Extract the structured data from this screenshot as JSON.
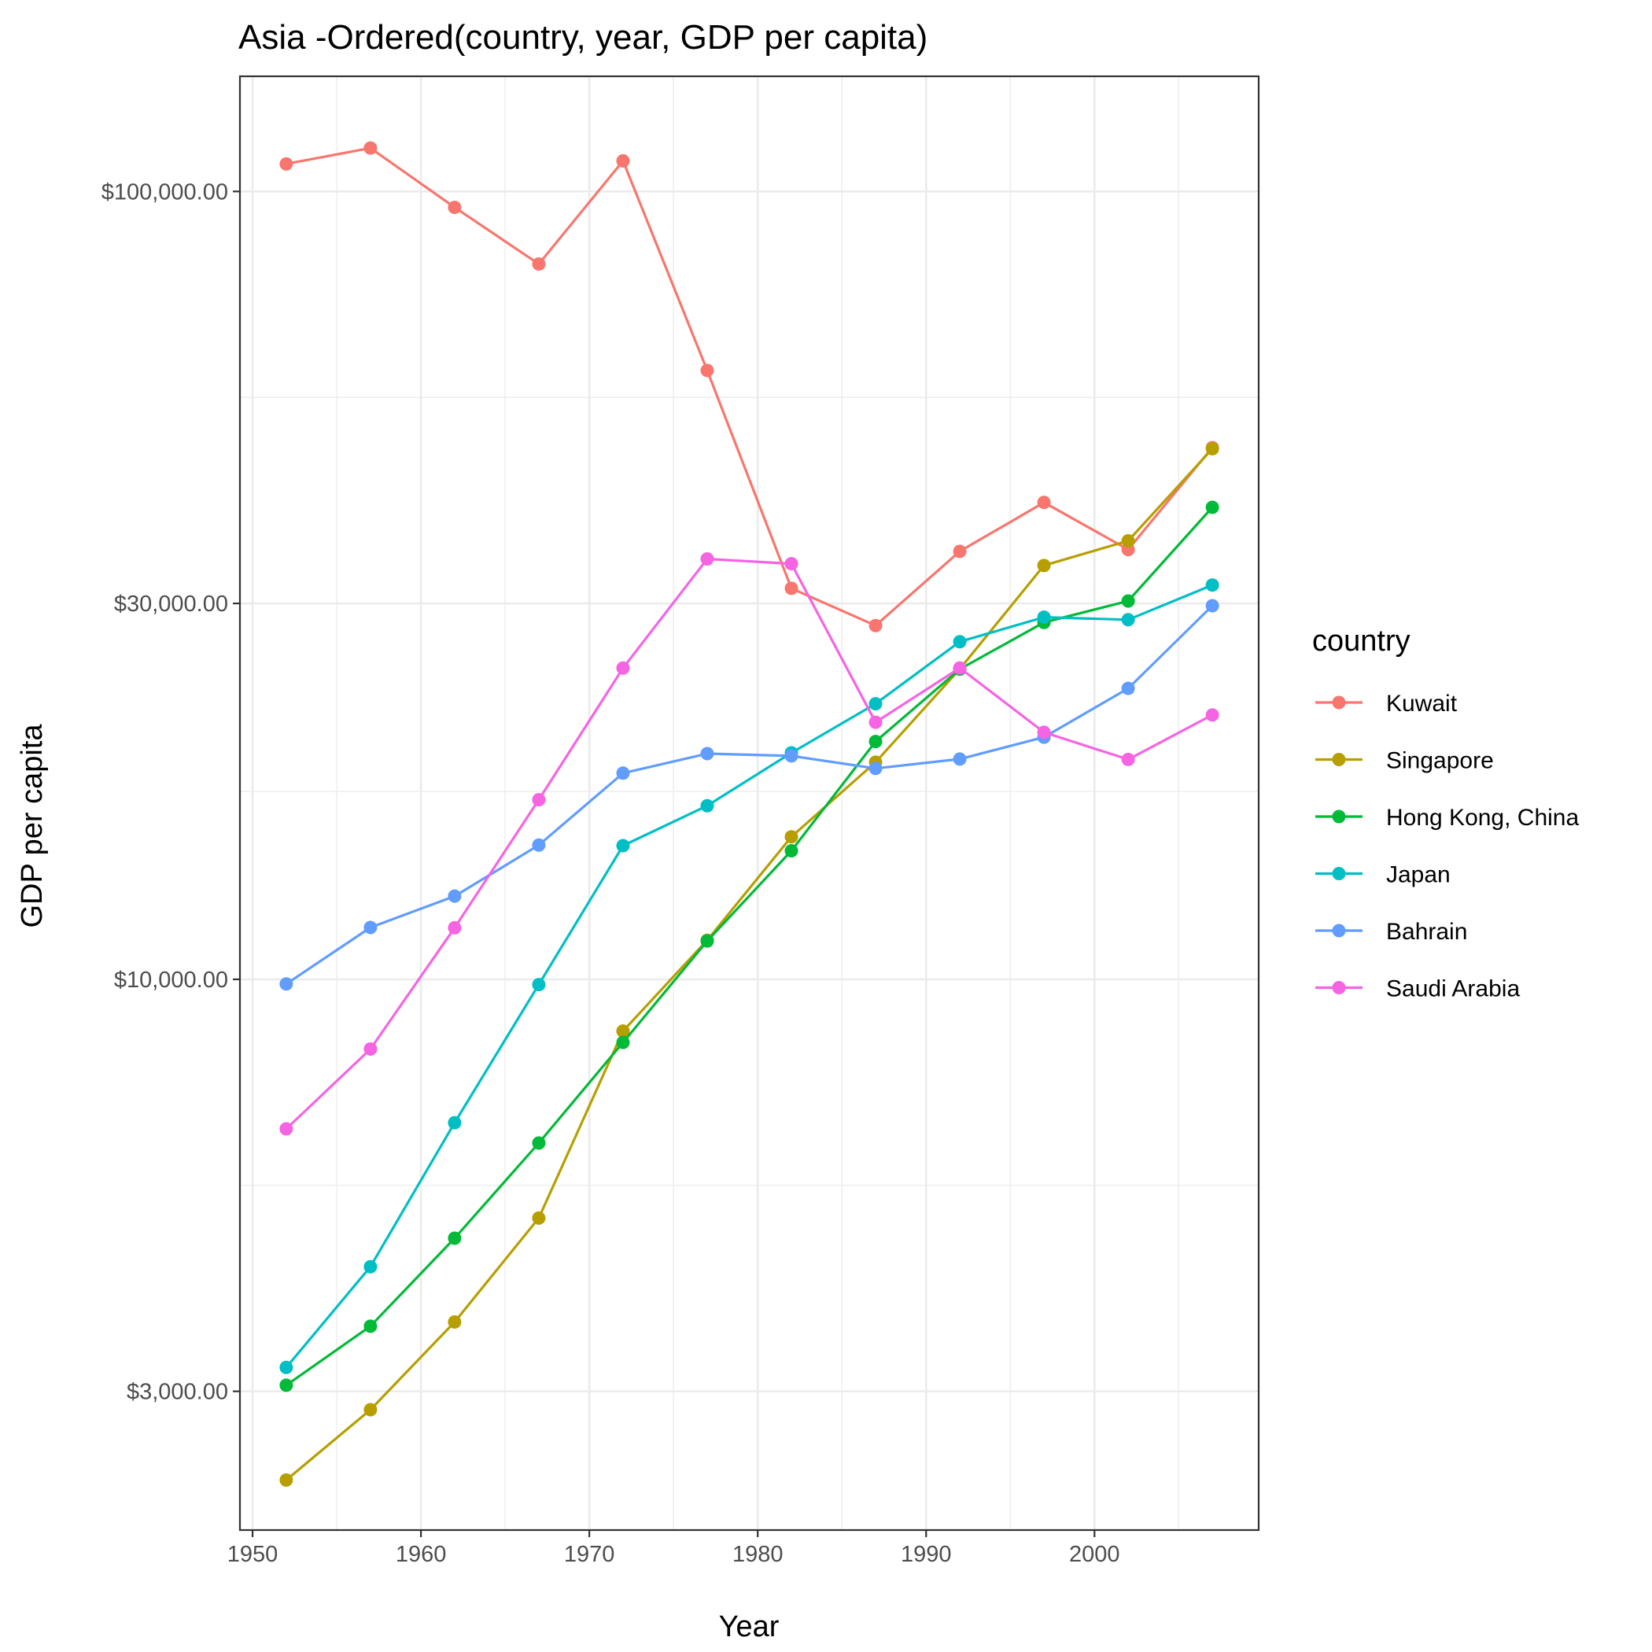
{
  "chart_data": {
    "type": "line",
    "title": "Asia -Ordered(country, year, GDP per capita)",
    "xlabel": "Year",
    "ylabel": "GDP per capita",
    "y_scale": "log10",
    "xlim": [
      1949.25,
      2009.75
    ],
    "ylim": [
      2000,
      140000
    ],
    "x_ticks": [
      1950,
      1960,
      1970,
      1980,
      1990,
      2000
    ],
    "x_tick_labels": [
      "1950",
      "1960",
      "1970",
      "1980",
      "1990",
      "2000"
    ],
    "y_ticks": [
      3000,
      10000,
      30000,
      100000
    ],
    "y_tick_labels": [
      "$3,000.00",
      "$10,000.00",
      "$30,000.00",
      "$100,000.00"
    ],
    "grid": true,
    "legend_title": "country",
    "legend_position": "right",
    "x": [
      1952,
      1957,
      1962,
      1967,
      1972,
      1977,
      1982,
      1987,
      1992,
      1997,
      2002,
      2007
    ],
    "series": [
      {
        "name": "Kuwait",
        "color": "#F8766D",
        "values": [
          108382,
          113523,
          95458,
          80895,
          109348,
          59265,
          31354,
          28118,
          34933,
          40301,
          35110,
          47307
        ]
      },
      {
        "name": "Singapore",
        "color": "#B79F00",
        "values": [
          2315,
          2843,
          3674,
          4978,
          8597,
          11210,
          15169,
          18862,
          24769,
          33519,
          36023,
          47143
        ]
      },
      {
        "name": "Hong Kong, China",
        "color": "#00BA38",
        "values": [
          3054,
          3629,
          4693,
          6198,
          8316,
          11186,
          14561,
          20038,
          24758,
          28378,
          30209,
          39725
        ]
      },
      {
        "name": "Japan",
        "color": "#00BFC4",
        "values": [
          3217,
          4318,
          6577,
          9848,
          14779,
          16610,
          19384,
          22376,
          26825,
          28817,
          28605,
          31656
        ]
      },
      {
        "name": "Bahrain",
        "color": "#619CFF",
        "values": [
          9867,
          11636,
          12753,
          14805,
          18269,
          19340,
          19211,
          18524,
          19036,
          20292,
          23404,
          29796
        ]
      },
      {
        "name": "Saudi Arabia",
        "color": "#F564E3",
        "values": [
          6460,
          8157,
          11626,
          16903,
          24837,
          34168,
          33693,
          21199,
          24841,
          20586,
          19014,
          21655
        ]
      }
    ]
  }
}
